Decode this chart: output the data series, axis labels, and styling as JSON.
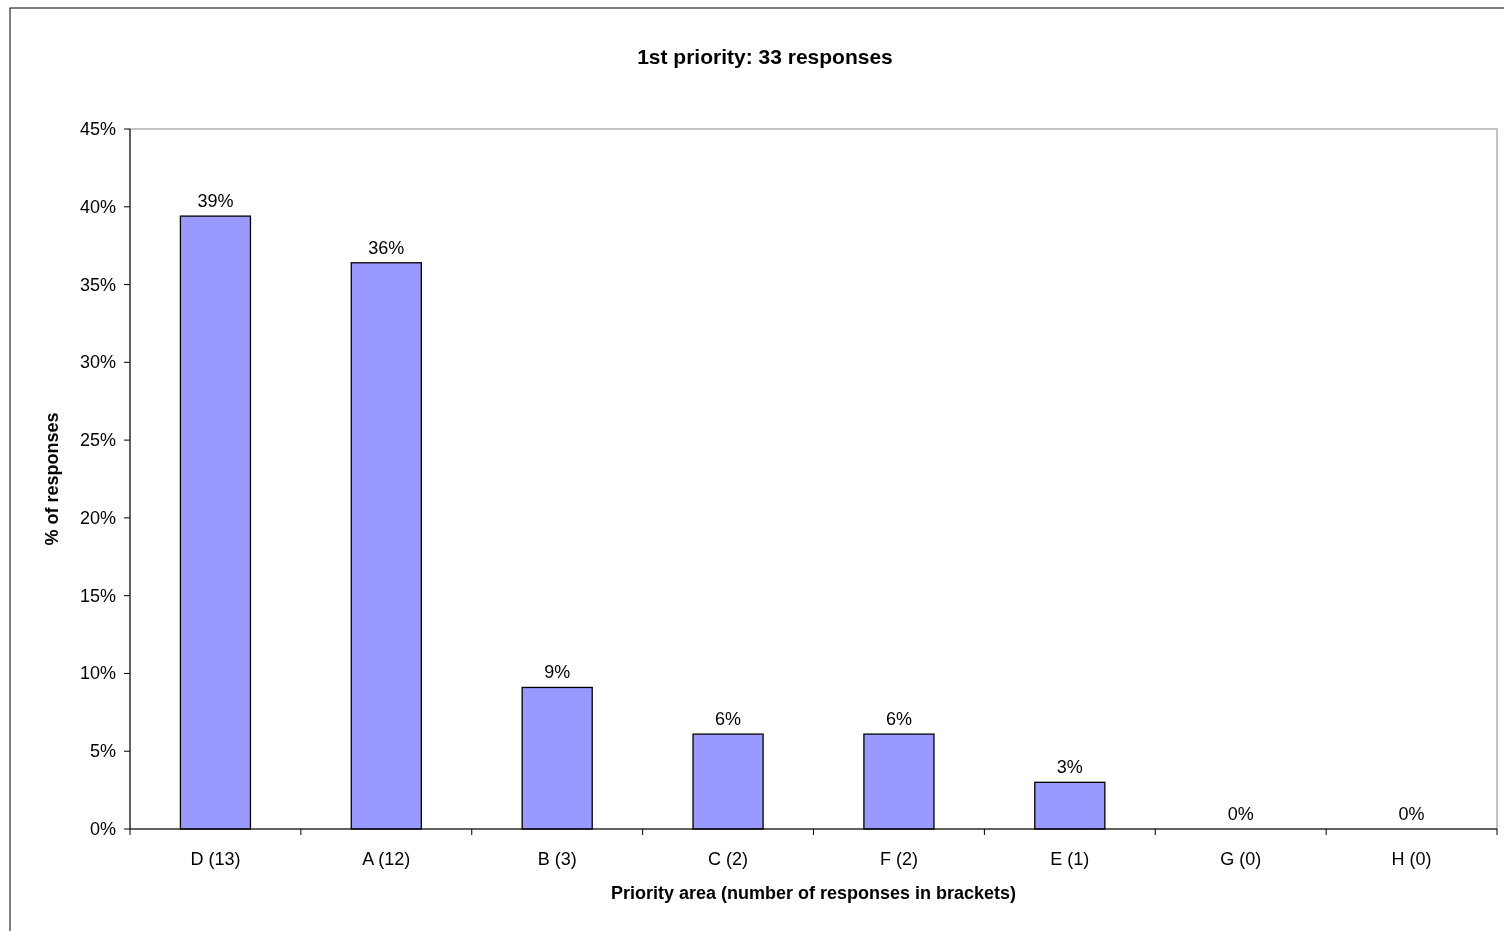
{
  "chart_data": {
    "type": "bar",
    "title": "1st priority: 33 responses",
    "xlabel": "Priority area (number of responses in brackets)",
    "ylabel": "% of responses",
    "categories": [
      "D (13)",
      "A (12)",
      "B (3)",
      "C (2)",
      "F (2)",
      "E (1)",
      "G (0)",
      "H (0)"
    ],
    "values": [
      39.4,
      36.4,
      9.1,
      6.1,
      6.1,
      3.0,
      0,
      0
    ],
    "value_labels": [
      "39%",
      "36%",
      "9%",
      "6%",
      "6%",
      "3%",
      "0%",
      "0%"
    ],
    "color": "#9999ff",
    "ylim": [
      0,
      45
    ],
    "yticks": [
      {
        "value": 0,
        "label": "0%"
      },
      {
        "value": 5,
        "label": "5%"
      },
      {
        "value": 10,
        "label": "10%"
      },
      {
        "value": 15,
        "label": "15%"
      },
      {
        "value": 20,
        "label": "20%"
      },
      {
        "value": 25,
        "label": "25%"
      },
      {
        "value": 30,
        "label": "30%"
      },
      {
        "value": 35,
        "label": "35%"
      },
      {
        "value": 40,
        "label": "40%"
      },
      {
        "value": 45,
        "label": "45%"
      }
    ],
    "grid": false
  }
}
